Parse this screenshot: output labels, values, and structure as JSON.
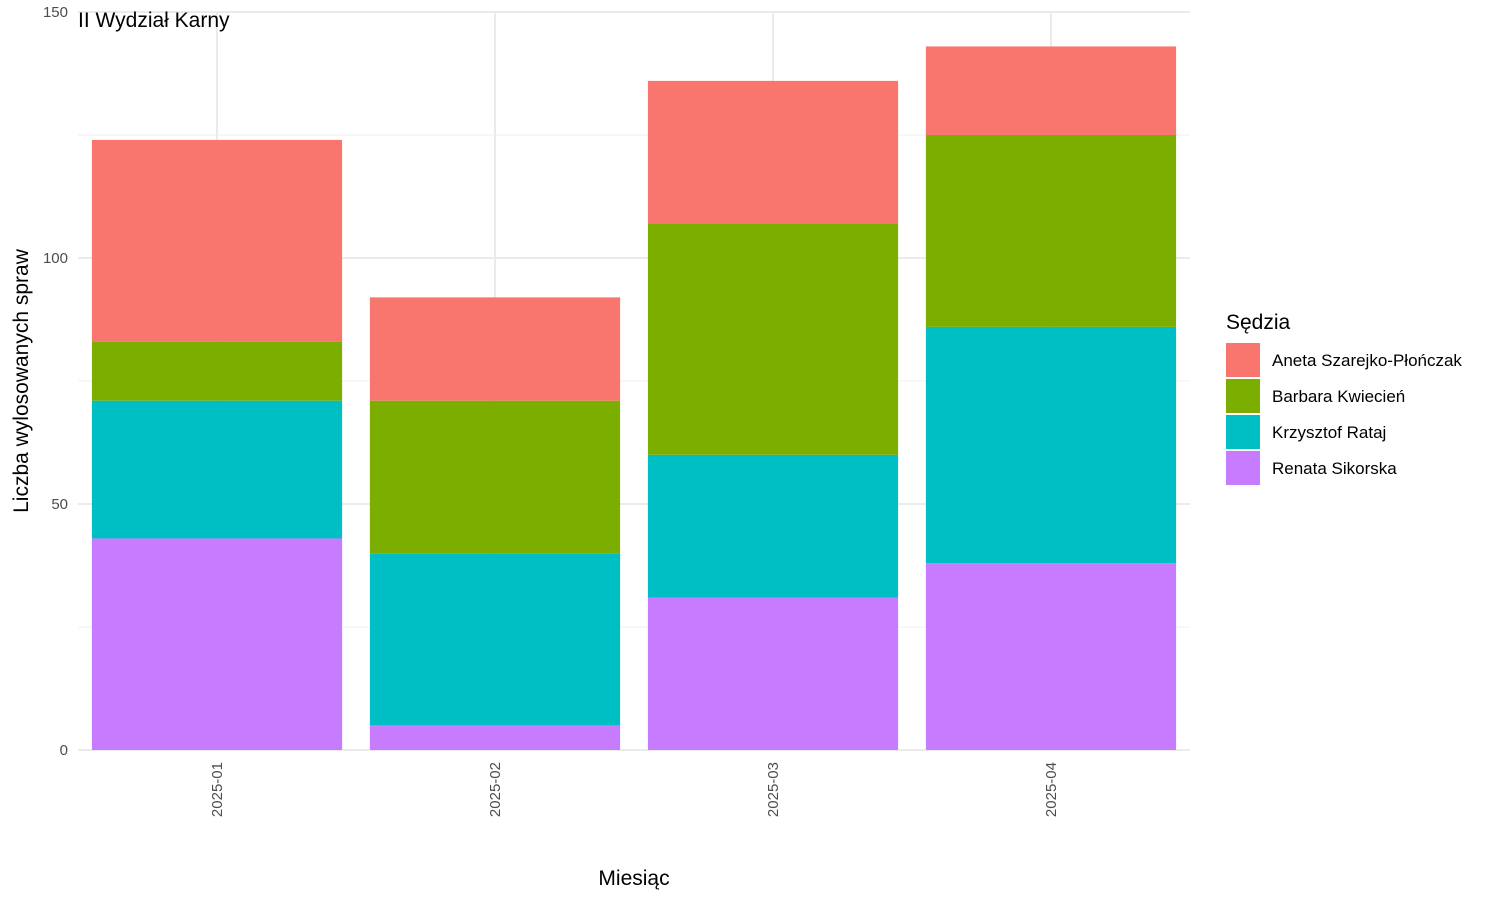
{
  "chart_data": {
    "type": "bar",
    "stacked": true,
    "title": "II Wydział Karny",
    "xlabel": "Miesiąc",
    "ylabel": "Liczba wylosowanych spraw",
    "ylim": [
      0,
      150
    ],
    "yticks": [
      0,
      50,
      100,
      150
    ],
    "grid": true,
    "legend_title": "Sędzia",
    "legend_position": "right",
    "categories": [
      "2025-01",
      "2025-02",
      "2025-03",
      "2025-04"
    ],
    "series": [
      {
        "name": "Renata Sikorska",
        "color": "#C77CFF",
        "values": [
          43,
          5,
          31,
          38
        ]
      },
      {
        "name": "Krzysztof Rataj",
        "color": "#00BFC4",
        "values": [
          28,
          35,
          29,
          48
        ]
      },
      {
        "name": "Barbara Kwiecień",
        "color": "#7CAE00",
        "values": [
          12,
          31,
          47,
          39
        ]
      },
      {
        "name": "Aneta Szarejko-Płończak",
        "color": "#F8766D",
        "values": [
          41,
          21,
          29,
          18
        ]
      }
    ],
    "legend_order": [
      "Aneta Szarejko-Płończak",
      "Barbara Kwiecień",
      "Krzysztof Rataj",
      "Renata Sikorska"
    ]
  }
}
